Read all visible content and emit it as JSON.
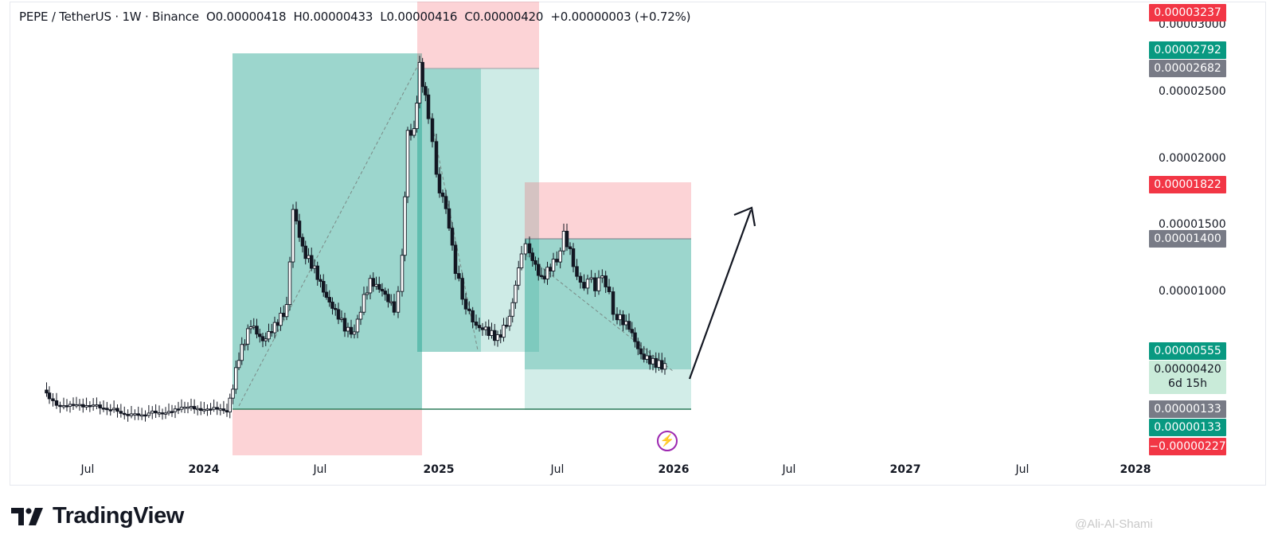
{
  "header": {
    "symbol": "PEPE / TetherUS · 1W · Binance",
    "open": "O0.00000418",
    "high": "H0.00000433",
    "low": "L0.00000416",
    "close": "C0.00000420",
    "change": "+0.00000003 (+0.72%)"
  },
  "price_tags": [
    {
      "text": "0.00003237",
      "style": "red"
    },
    {
      "text": "0.00002792",
      "style": "green"
    },
    {
      "text": "0.00002682",
      "style": "gray"
    },
    {
      "text": "0.00001822",
      "style": "red"
    },
    {
      "text": "0.00001400",
      "style": "gray"
    },
    {
      "text": "0.00000555",
      "style": "green"
    },
    {
      "text": "0.00000133",
      "style": "gray"
    },
    {
      "text": "0.00000133",
      "style": "green"
    },
    {
      "text": "−0.00000227",
      "style": "red"
    }
  ],
  "current_price": {
    "value": "0.00000420",
    "countdown": "6d 15h"
  },
  "price_axis_labels": [
    "0.00003000",
    "0.00002500",
    "0.00002000",
    "0.00001500",
    "0.00001000"
  ],
  "time_axis": [
    {
      "text": "Jul",
      "bold": false
    },
    {
      "text": "2024",
      "bold": true
    },
    {
      "text": "Jul",
      "bold": false
    },
    {
      "text": "2025",
      "bold": true
    },
    {
      "text": "Jul",
      "bold": false
    },
    {
      "text": "2026",
      "bold": true
    },
    {
      "text": "Jul",
      "bold": false
    },
    {
      "text": "2027",
      "bold": true
    },
    {
      "text": "Jul",
      "bold": false
    },
    {
      "text": "2028",
      "bold": true
    }
  ],
  "brand": {
    "name": "TradingView"
  },
  "watermark": "@Ali-Al-Shami",
  "colors": {
    "up": "#089981",
    "down": "#f23645",
    "profit_zone": "#089981",
    "loss_zone": "#f23645",
    "text": "#131722"
  },
  "icons": {
    "alert": "lightning-bolt-icon",
    "arrow": "up-arrow-projection"
  }
}
